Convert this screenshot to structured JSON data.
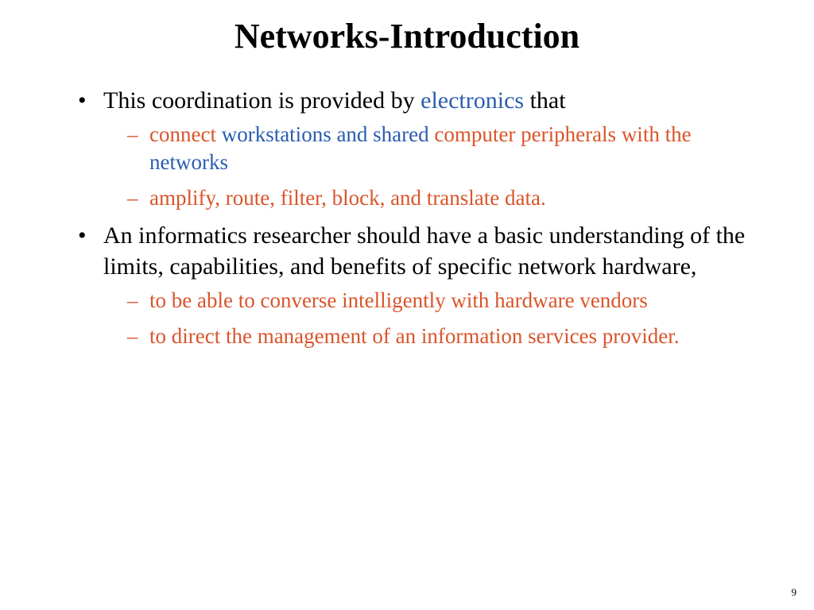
{
  "title": "Networks-Introduction",
  "colors": {
    "text": "#000000",
    "blue": "#2a5db0",
    "orange": "#d9552b",
    "background": "#ffffff"
  },
  "typography": {
    "title_fontsize": 44,
    "level1_fontsize": 30,
    "level2_fontsize": 27,
    "family": "Times New Roman"
  },
  "bullets": [
    {
      "runs": [
        {
          "text": "This coordination is provided by ",
          "color": "#000000"
        },
        {
          "text": "electronics",
          "color": "#2a5db0"
        },
        {
          "text": " that",
          "color": "#000000"
        }
      ],
      "sub": [
        {
          "dash_color": "#d9552b",
          "runs": [
            {
              "text": "connect",
              "color": "#d9552b"
            },
            {
              "text": " workstations and shared ",
              "color": "#2a5db0"
            },
            {
              "text": "computer peripherals",
              "color": "#d9552b"
            },
            {
              "text": " with the ",
              "color": "#d9552b"
            },
            {
              "text": "networks",
              "color": "#2a5db0"
            }
          ]
        },
        {
          "dash_color": "#d9552b",
          "runs": [
            {
              "text": "amplify, route, filter, block, and translate data.",
              "color": "#d9552b"
            }
          ]
        }
      ]
    },
    {
      "runs": [
        {
          "text": "An informatics researcher should have a basic understanding of the limits, capabilities, and benefits of specific network hardware,",
          "color": "#000000"
        }
      ],
      "sub": [
        {
          "dash_color": "#d9552b",
          "runs": [
            {
              "text": "to be able to converse intelligently with hardware vendors",
              "color": "#d9552b"
            }
          ]
        },
        {
          "dash_color": "#d9552b",
          "runs": [
            {
              "text": "to direct the management of an information services provider.",
              "color": "#d9552b"
            }
          ]
        }
      ]
    }
  ],
  "page_number": "9"
}
